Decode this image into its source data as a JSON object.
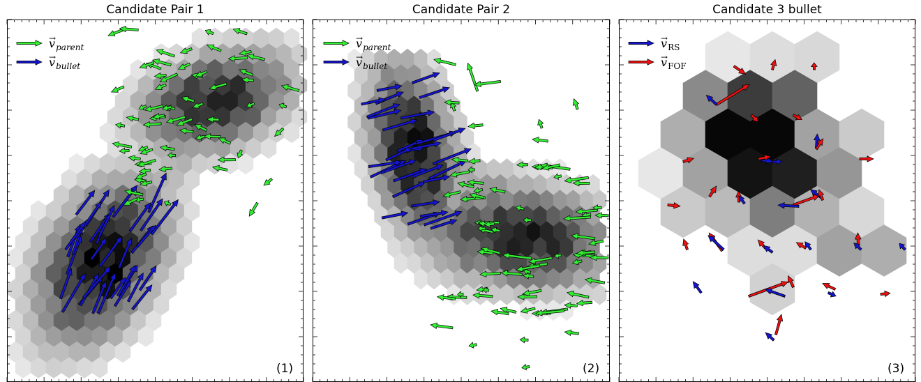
{
  "panels": [
    {
      "id": "panel-1",
      "title": "Candidate Pair 1",
      "corner_label": "(1)",
      "legend": [
        {
          "base": "v",
          "sub": "parent",
          "sub_style": "italic",
          "color": "#33ee33"
        },
        {
          "base": "v",
          "sub": "bullet",
          "sub_style": "italic",
          "color": "#1515cc"
        }
      ]
    },
    {
      "id": "panel-2",
      "title": "Candidate Pair 2",
      "corner_label": "(2)",
      "legend": [
        {
          "base": "v",
          "sub": "parent",
          "sub_style": "italic",
          "color": "#33ee33"
        },
        {
          "base": "v",
          "sub": "bullet",
          "sub_style": "italic",
          "color": "#1515cc"
        }
      ]
    },
    {
      "id": "panel-3",
      "title": "Candidate 3 bullet",
      "corner_label": "(3)",
      "legend": [
        {
          "base": "v",
          "sub": "RS",
          "sub_style": "roman",
          "color": "#1515cc"
        },
        {
          "base": "v",
          "sub": "FOF",
          "sub_style": "roman",
          "color": "#ee1111"
        }
      ]
    }
  ],
  "colors": {
    "parent_arrow": "#33ee33",
    "bullet_arrow": "#1515cc",
    "rs_arrow": "#1515cc",
    "fof_arrow": "#ee1111",
    "frame": "#000000"
  }
}
